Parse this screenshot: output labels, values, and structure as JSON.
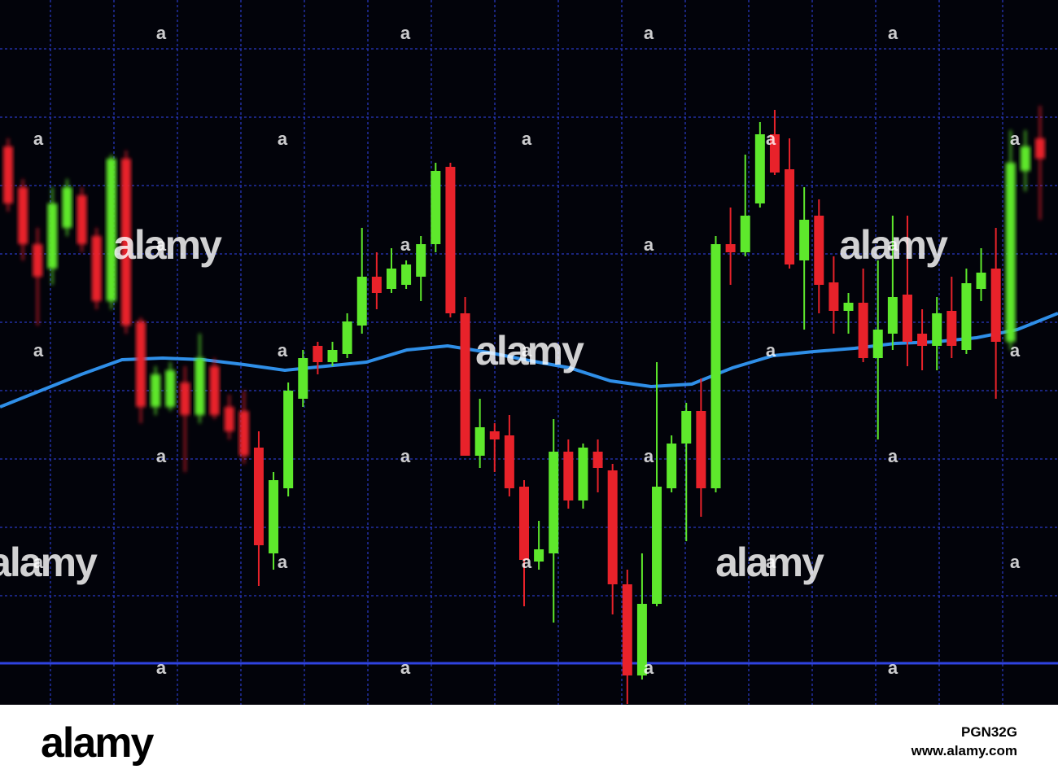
{
  "chart_data": {
    "type": "candlestick",
    "categories": [
      null,
      null,
      null,
      null,
      null,
      null,
      null,
      null,
      null,
      null,
      null,
      null,
      null,
      null,
      null,
      null,
      null,
      null,
      null,
      null,
      null,
      null,
      null,
      null,
      null,
      null,
      null,
      null,
      null,
      null,
      null,
      null,
      null,
      null,
      null,
      null,
      null,
      null,
      null,
      null,
      null,
      null,
      null,
      null,
      null,
      null,
      null,
      null,
      null,
      null,
      null,
      null,
      null,
      null,
      null,
      null,
      null,
      null,
      null,
      null,
      null,
      null,
      null,
      null,
      null,
      null,
      null,
      null,
      null,
      null,
      null
    ],
    "open": [
      686,
      636,
      566,
      536,
      586,
      626,
      576,
      496,
      671,
      471,
      366,
      366,
      396,
      356,
      416,
      366,
      361,
      316,
      186,
      266,
      376,
      441,
      421,
      431,
      466,
      526,
      511,
      516,
      526,
      566,
      661,
      481,
      306,
      336,
      331,
      268,
      176,
      186,
      311,
      251,
      311,
      288,
      148,
      36,
      124,
      266,
      321,
      361,
      266,
      566,
      556,
      616,
      701,
      658,
      546,
      601,
      519,
      484,
      494,
      426,
      456,
      504,
      456,
      441,
      484,
      436,
      511,
      536,
      446,
      656,
      696
    ],
    "high": [
      696,
      646,
      586,
      636,
      646,
      636,
      586,
      676,
      681,
      476,
      416,
      421,
      416,
      456,
      426,
      381,
      386,
      336,
      286,
      396,
      436,
      446,
      446,
      481,
      586,
      556,
      561,
      546,
      576,
      666,
      666,
      501,
      376,
      346,
      356,
      276,
      226,
      351,
      326,
      321,
      326,
      296,
      166,
      186,
      421,
      331,
      371,
      401,
      576,
      611,
      676,
      716,
      731,
      696,
      636,
      621,
      551,
      506,
      536,
      546,
      601,
      601,
      486,
      501,
      526,
      536,
      561,
      586,
      706,
      706,
      736
    ],
    "low": [
      606,
      546,
      466,
      516,
      576,
      556,
      486,
      486,
      456,
      346,
      356,
      361,
      286,
      346,
      351,
      326,
      296,
      146,
      166,
      256,
      366,
      406,
      416,
      426,
      456,
      486,
      506,
      511,
      496,
      556,
      476,
      306,
      291,
      286,
      256,
      121,
      166,
      101,
      241,
      241,
      261,
      111,
      1,
      31,
      121,
      261,
      201,
      231,
      261,
      516,
      551,
      611,
      651,
      536,
      461,
      481,
      456,
      456,
      421,
      326,
      436,
      416,
      411,
      411,
      426,
      431,
      496,
      376,
      436,
      631,
      596
    ],
    "close": [
      616,
      566,
      526,
      616,
      636,
      566,
      496,
      671,
      466,
      366,
      406,
      411,
      356,
      426,
      356,
      336,
      306,
      196,
      276,
      386,
      426,
      421,
      436,
      471,
      526,
      506,
      536,
      541,
      566,
      656,
      481,
      306,
      341,
      326,
      266,
      178,
      191,
      311,
      251,
      316,
      291,
      148,
      36,
      124,
      268,
      321,
      361,
      266,
      566,
      556,
      601,
      701,
      654,
      541,
      596,
      516,
      484,
      494,
      426,
      461,
      501,
      446,
      441,
      481,
      441,
      518,
      531,
      446,
      666,
      686,
      671
    ],
    "up_color": "#5ee82c",
    "down_color": "#e8222a",
    "moving_average": {
      "color": "#2f8fe8",
      "values": [
        366,
        386,
        406,
        424,
        426,
        424,
        418,
        411,
        416,
        421,
        436,
        441,
        433,
        423,
        414,
        398,
        391,
        394,
        414,
        429,
        434,
        438,
        444,
        446,
        451,
        461,
        481
      ]
    },
    "ylim": [
      0,
      866
    ]
  },
  "watermark": {
    "logos": [
      "alamy",
      "alamy",
      "alamy",
      "alamy",
      "alamy"
    ],
    "marks": [
      "a",
      "a",
      "a",
      "a",
      "a",
      "a",
      "a",
      "a",
      "a",
      "a",
      "a",
      "a",
      "a",
      "a",
      "a",
      "a",
      "a",
      "a",
      "a",
      "a",
      "a",
      "a",
      "a",
      "a",
      "a",
      "a",
      "a",
      "a",
      "a",
      "a",
      "a"
    ]
  },
  "footer": {
    "logo": "alamy",
    "image_id": "PGN32G",
    "url": "www.alamy.com"
  }
}
